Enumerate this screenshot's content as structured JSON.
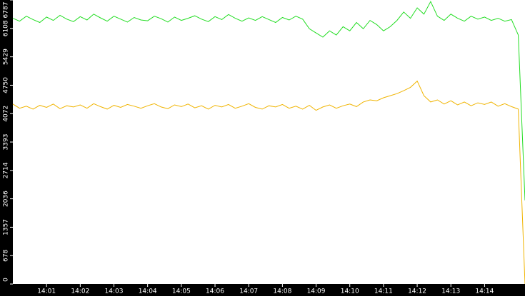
{
  "chart_data": {
    "type": "line",
    "x": [
      0,
      0.2,
      0.4,
      0.6,
      0.8,
      1,
      1.2,
      1.4,
      1.6,
      1.8,
      2,
      2.2,
      2.4,
      2.6,
      2.8,
      3,
      3.2,
      3.4,
      3.6,
      3.8,
      4,
      4.2,
      4.4,
      4.6,
      4.8,
      5,
      5.2,
      5.4,
      5.6,
      5.8,
      6,
      6.2,
      6.4,
      6.6,
      6.8,
      7,
      7.2,
      7.4,
      7.6,
      7.8,
      8,
      8.2,
      8.4,
      8.6,
      8.8,
      9,
      9.2,
      9.4,
      9.6,
      9.8,
      10,
      10.2,
      10.4,
      10.6,
      10.8,
      11,
      11.2,
      11.4,
      11.6,
      11.8,
      12,
      12.2,
      12.4,
      12.6,
      12.8,
      13,
      13.2,
      13.4,
      13.6,
      13.8,
      14,
      14.2,
      14.4,
      14.6,
      14.8,
      15,
      15.2
    ],
    "series": [
      {
        "color": "#22dd22",
        "values": [
          6350,
          6280,
          6400,
          6320,
          6250,
          6380,
          6300,
          6420,
          6330,
          6270,
          6390,
          6310,
          6450,
          6360,
          6280,
          6400,
          6330,
          6260,
          6370,
          6310,
          6290,
          6400,
          6340,
          6260,
          6380,
          6300,
          6350,
          6410,
          6330,
          6270,
          6390,
          6320,
          6440,
          6350,
          6280,
          6360,
          6300,
          6390,
          6320,
          6250,
          6370,
          6310,
          6400,
          6330,
          6100,
          6000,
          5900,
          6050,
          5950,
          6150,
          6050,
          6250,
          6100,
          6300,
          6200,
          6050,
          6150,
          6300,
          6500,
          6350,
          6600,
          6450,
          6750,
          6400,
          6300,
          6450,
          6350,
          6280,
          6400,
          6330,
          6380,
          6300,
          6350,
          6280,
          6320,
          5950,
          2000
        ]
      },
      {
        "color": "#f0b400",
        "values": [
          4300,
          4200,
          4250,
          4180,
          4270,
          4220,
          4300,
          4190,
          4260,
          4230,
          4280,
          4200,
          4310,
          4240,
          4180,
          4270,
          4220,
          4290,
          4250,
          4200,
          4260,
          4310,
          4230,
          4190,
          4280,
          4240,
          4300,
          4210,
          4260,
          4180,
          4270,
          4230,
          4290,
          4200,
          4250,
          4310,
          4220,
          4180,
          4260,
          4230,
          4290,
          4200,
          4250,
          4180,
          4270,
          4150,
          4230,
          4280,
          4200,
          4260,
          4300,
          4240,
          4350,
          4400,
          4380,
          4450,
          4500,
          4550,
          4620,
          4700,
          4850,
          4500,
          4350,
          4400,
          4300,
          4380,
          4280,
          4350,
          4260,
          4330,
          4290,
          4350,
          4250,
          4310,
          4240,
          4180,
          0
        ]
      }
    ],
    "xlim": [
      0,
      15.2
    ],
    "xticks": [
      {
        "value": 1,
        "label": "14:01"
      },
      {
        "value": 2,
        "label": "14:02"
      },
      {
        "value": 3,
        "label": "14:03"
      },
      {
        "value": 4,
        "label": "14:04"
      },
      {
        "value": 5,
        "label": "14:05"
      },
      {
        "value": 6,
        "label": "14:06"
      },
      {
        "value": 7,
        "label": "14:07"
      },
      {
        "value": 8,
        "label": "14:08"
      },
      {
        "value": 9,
        "label": "14:09"
      },
      {
        "value": 10,
        "label": "14:10"
      },
      {
        "value": 11,
        "label": "14:11"
      },
      {
        "value": 12,
        "label": "14:12"
      },
      {
        "value": 13,
        "label": "14:13"
      },
      {
        "value": 14,
        "label": "14:14"
      }
    ],
    "ylim": [
      0,
      6787
    ],
    "yticks": [
      0,
      678,
      1357,
      2036,
      2714,
      3393,
      4072,
      4750,
      5429,
      6108,
      6787
    ]
  }
}
